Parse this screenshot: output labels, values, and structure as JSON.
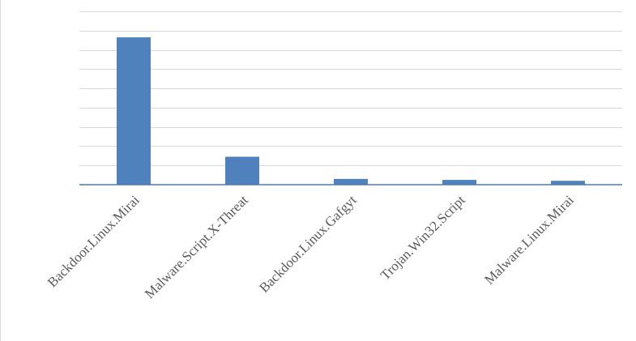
{
  "chart_data": {
    "type": "bar",
    "title": "",
    "xlabel": "",
    "ylabel": "",
    "categories": [
      "Backdoor.Linux.Mirai",
      "Malware.Script.X-Threat",
      "Backdoor.Linux.Gafgyt",
      "Trojan.Win32.Script",
      "Malware.Linux.Mirai"
    ],
    "values": [
      7.65,
      1.45,
      0.3,
      0.25,
      0.2
    ],
    "ylim": [
      0,
      9
    ],
    "gridlines": 9,
    "grid": true,
    "legend": "none",
    "bar_color": "#4f81bd",
    "grid_color": "#d9d9d9",
    "axis_color": "#4a7ab5"
  }
}
